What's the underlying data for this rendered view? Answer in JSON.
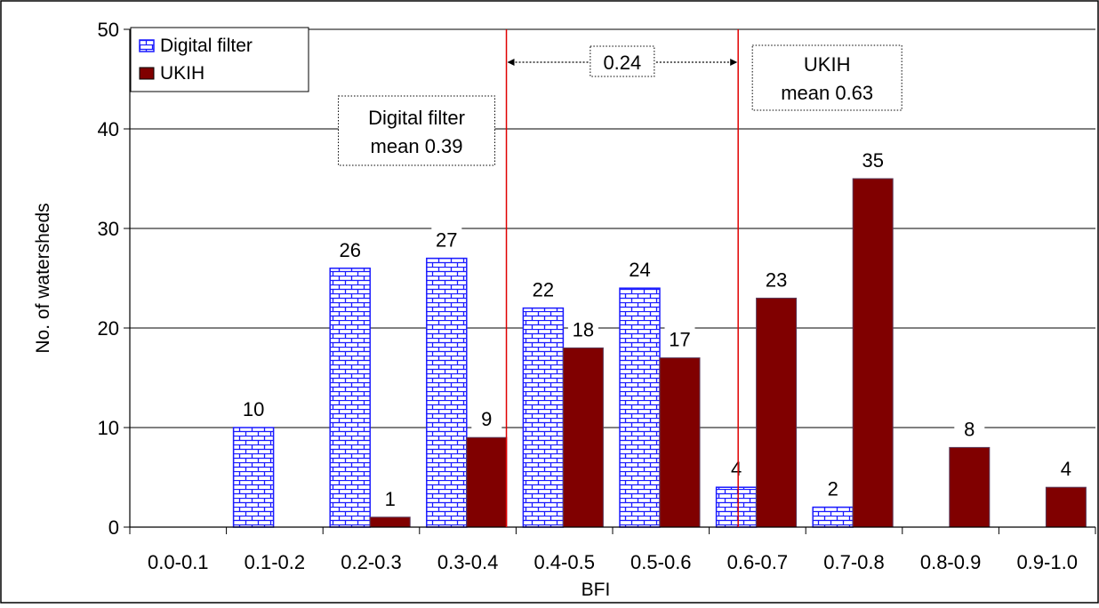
{
  "chart_data": {
    "type": "bar",
    "title": "",
    "xlabel": "BFI",
    "ylabel": "No. of watersheds",
    "ylim": [
      0,
      50
    ],
    "yticks": [
      0,
      10,
      20,
      30,
      40,
      50
    ],
    "grid": true,
    "legend_position": "top-left",
    "categories": [
      "0.0-0.1",
      "0.1-0.2",
      "0.2-0.3",
      "0.3-0.4",
      "0.4-0.5",
      "0.5-0.6",
      "0.6-0.7",
      "0.7-0.8",
      "0.8-0.9",
      "0.9-1.0"
    ],
    "series": [
      {
        "name": "Digital filter",
        "values": [
          0,
          10,
          26,
          27,
          22,
          24,
          4,
          2,
          0,
          0
        ],
        "labels": [
          "",
          "10",
          "26",
          "27",
          "22",
          "24",
          "4",
          "2",
          "",
          ""
        ],
        "color": "#1a1aff",
        "pattern": "brick"
      },
      {
        "name": "UKIH",
        "values": [
          0,
          0,
          1,
          9,
          18,
          17,
          23,
          35,
          8,
          4
        ],
        "labels": [
          "",
          "",
          "1",
          "9",
          "18",
          "17",
          "23",
          "35",
          "8",
          "4"
        ],
        "color": "#800000",
        "pattern": "solid"
      }
    ],
    "mean_lines": [
      {
        "name": "digital-filter-mean",
        "value": 0.39,
        "line1": "Digital filter",
        "line2": "mean 0.39"
      },
      {
        "name": "ukih-mean",
        "value": 0.63,
        "line1": "UKIH",
        "line2": "mean 0.63"
      }
    ],
    "difference_label": "0.24",
    "line_color": "#e00000"
  }
}
